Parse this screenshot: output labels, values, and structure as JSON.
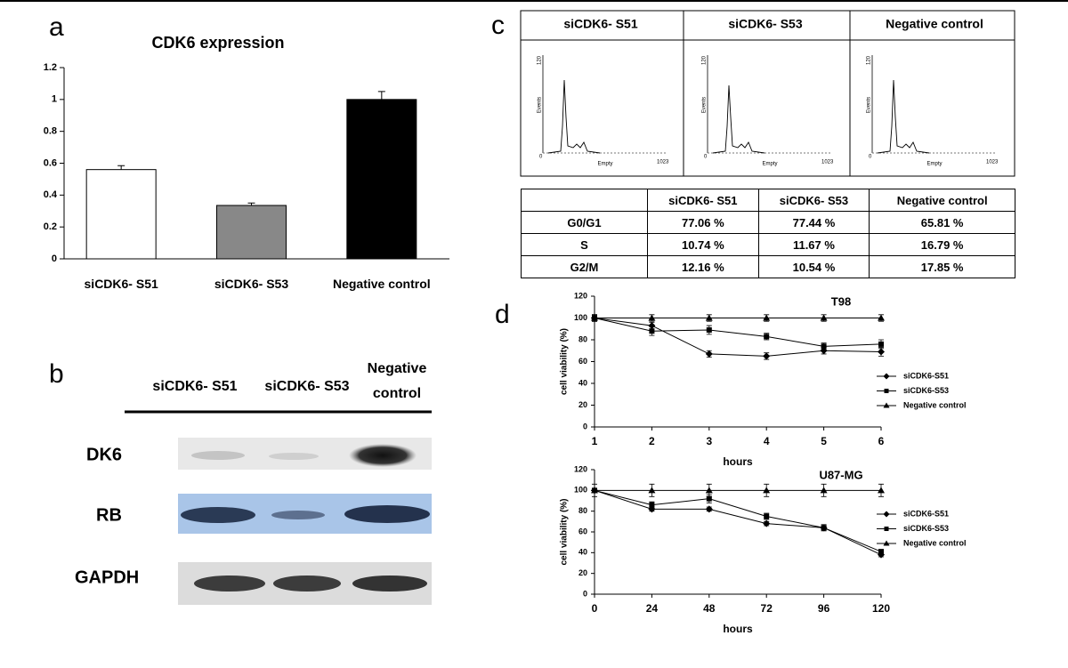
{
  "panels": {
    "a": "a",
    "b": "b",
    "c": "c",
    "d": "d"
  },
  "blot": {
    "columns": [
      "siCDK6- S51",
      "siCDK6- S53",
      "Negative control"
    ],
    "rows": [
      "DK6",
      "RB",
      "GAPDH"
    ]
  },
  "flow": {
    "headers": [
      "siCDK6- S51",
      "siCDK6- S53",
      "Negative control"
    ],
    "y_max": "120",
    "y_label": "Events",
    "x_label": "Empty",
    "x_min": "0",
    "x_max": "1023"
  },
  "table": {
    "columns": [
      "siCDK6- S51",
      "siCDK6- S53",
      "Negative control"
    ],
    "rows": [
      {
        "label": "G0/G1",
        "cells": [
          "77.06 %",
          "77.44 %",
          "65.81 %"
        ]
      },
      {
        "label": "S",
        "cells": [
          "10.74 %",
          "11.67 %",
          "16.79 %"
        ]
      },
      {
        "label": "G2/M",
        "cells": [
          "12.16 %",
          "10.54 %",
          "17.85 %"
        ]
      }
    ]
  },
  "chart_data": [
    {
      "type": "bar",
      "title": "CDK6 expression",
      "categories": [
        "siCDK6- S51",
        "siCDK6- S53",
        "Negative control"
      ],
      "values": [
        0.56,
        0.335,
        1.0
      ],
      "errors": [
        0.025,
        0.015,
        0.05
      ],
      "colors": [
        "#ffffff",
        "#888888",
        "#000000"
      ],
      "ylim": [
        0,
        1.2
      ],
      "yticks": [
        0,
        0.2,
        0.4,
        0.6,
        0.8,
        1,
        1.2
      ]
    },
    {
      "type": "line",
      "title": "T98",
      "x_label": "hours",
      "y_label": "cell viability (%)",
      "x": [
        1,
        2,
        3,
        4,
        5,
        6
      ],
      "xlim": [
        1,
        6
      ],
      "xticks": [
        1,
        2,
        3,
        4,
        5,
        6
      ],
      "ylim": [
        0,
        120
      ],
      "yticks": [
        0,
        20,
        40,
        60,
        80,
        100,
        120
      ],
      "legend": "right",
      "series": [
        {
          "name": "siCDK6-S51",
          "color": "#000000",
          "marker": "diamond",
          "values": [
            100,
            93,
            67,
            65,
            70,
            69
          ],
          "errors": [
            3,
            3,
            3,
            3,
            3,
            4
          ]
        },
        {
          "name": "siCDK6-S53",
          "color": "#000000",
          "marker": "square",
          "values": [
            100,
            88,
            89,
            83,
            74,
            76
          ],
          "errors": [
            3,
            4,
            4,
            3,
            3,
            4
          ]
        },
        {
          "name": "Negative control",
          "color": "#000000",
          "marker": "triangle",
          "values": [
            100,
            100,
            100,
            100,
            100,
            100
          ],
          "errors": [
            3,
            3,
            3,
            3,
            3,
            3
          ]
        }
      ]
    },
    {
      "type": "line",
      "title": "U87-MG",
      "x_label": "hours",
      "y_label": "cell viability (%)",
      "x": [
        0,
        24,
        48,
        72,
        96,
        120
      ],
      "xlim": [
        0,
        120
      ],
      "xticks": [
        0,
        24,
        48,
        72,
        96,
        120
      ],
      "ylim": [
        0,
        120
      ],
      "yticks": [
        0,
        20,
        40,
        60,
        80,
        100,
        120
      ],
      "legend": "right",
      "series": [
        {
          "name": "siCDK6-S51",
          "color": "#000000",
          "marker": "diamond",
          "values": [
            100,
            82,
            82,
            68,
            64,
            38
          ],
          "errors": [
            2,
            2,
            2,
            2,
            2,
            2
          ]
        },
        {
          "name": "siCDK6-S53",
          "color": "#000000",
          "marker": "square",
          "values": [
            100,
            86,
            92,
            75,
            64,
            41
          ],
          "errors": [
            2,
            3,
            4,
            3,
            3,
            2
          ]
        },
        {
          "name": "Negative control",
          "color": "#000000",
          "marker": "triangle",
          "values": [
            100,
            100,
            100,
            100,
            100,
            100
          ],
          "errors": [
            6,
            6,
            6,
            6,
            6,
            6
          ]
        }
      ]
    }
  ]
}
